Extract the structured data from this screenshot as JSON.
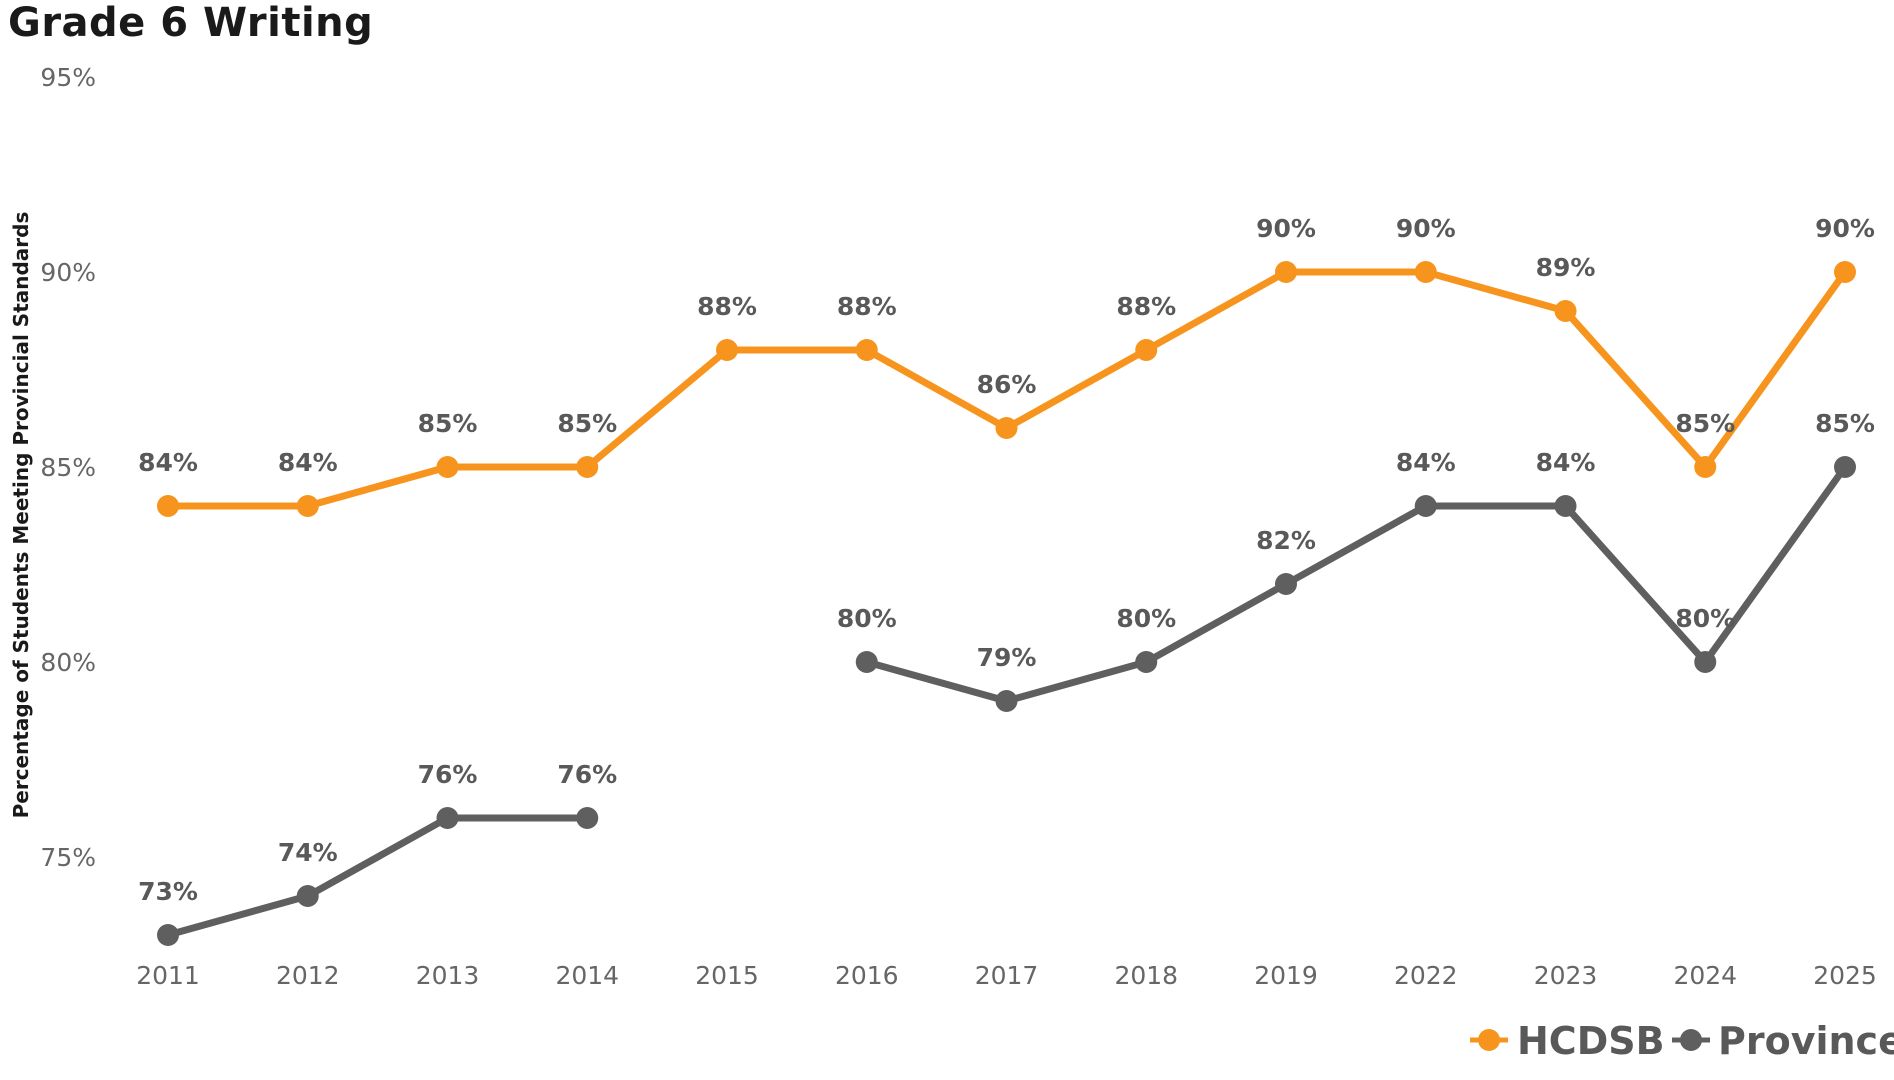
{
  "chart_data": {
    "type": "line",
    "title": "Grade 6 Writing",
    "ylabel": "Percentage of Students Meeting Provincial Standards",
    "xlabel": "",
    "categories": [
      "2011",
      "2012",
      "2013",
      "2014",
      "2015",
      "2016",
      "2017",
      "2018",
      "2019",
      "2022",
      "2023",
      "2024",
      "2025"
    ],
    "ylim": [
      72,
      95
    ],
    "yticks": [
      75,
      80,
      85,
      90,
      95
    ],
    "ytick_labels": [
      "75%",
      "80%",
      "85%",
      "90%",
      "95%"
    ],
    "grid": false,
    "legend_position": "bottom-right",
    "series": [
      {
        "name": "HCDSB",
        "color": "#F7941D",
        "values": [
          84,
          84,
          85,
          85,
          88,
          88,
          86,
          88,
          90,
          90,
          89,
          85,
          90
        ],
        "labels": [
          "84%",
          "84%",
          "85%",
          "85%",
          "88%",
          "88%",
          "86%",
          "88%",
          "90%",
          "90%",
          "89%",
          "85%",
          "90%"
        ]
      },
      {
        "name": "Province",
        "color": "#5F5F5F",
        "values": [
          73,
          74,
          76,
          76,
          null,
          80,
          79,
          80,
          82,
          84,
          84,
          80,
          85
        ],
        "labels": [
          "73%",
          "74%",
          "76%",
          "76%",
          null,
          "80%",
          "79%",
          "80%",
          "82%",
          "84%",
          "84%",
          "80%",
          "85%"
        ]
      }
    ]
  }
}
